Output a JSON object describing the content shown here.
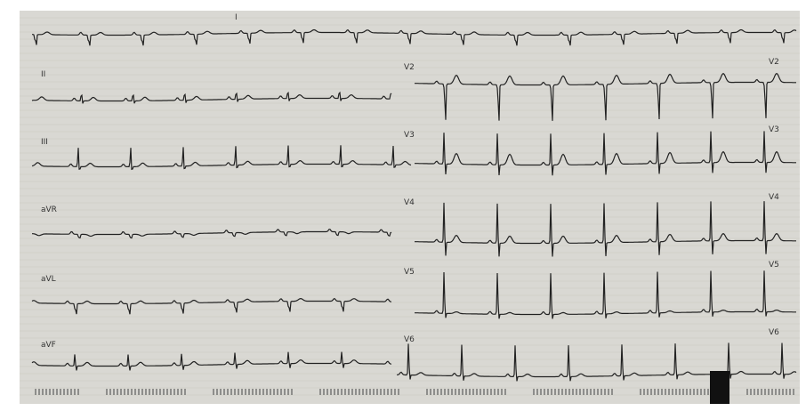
{
  "leads": {
    "left": [
      "I",
      "II",
      "III",
      "aVR",
      "aVL",
      "aVF"
    ],
    "middle": [
      "V2",
      "V3",
      "V4",
      "V5",
      "V6"
    ],
    "right": [
      "V2",
      "V3",
      "V4",
      "V5",
      "V6"
    ]
  }
}
